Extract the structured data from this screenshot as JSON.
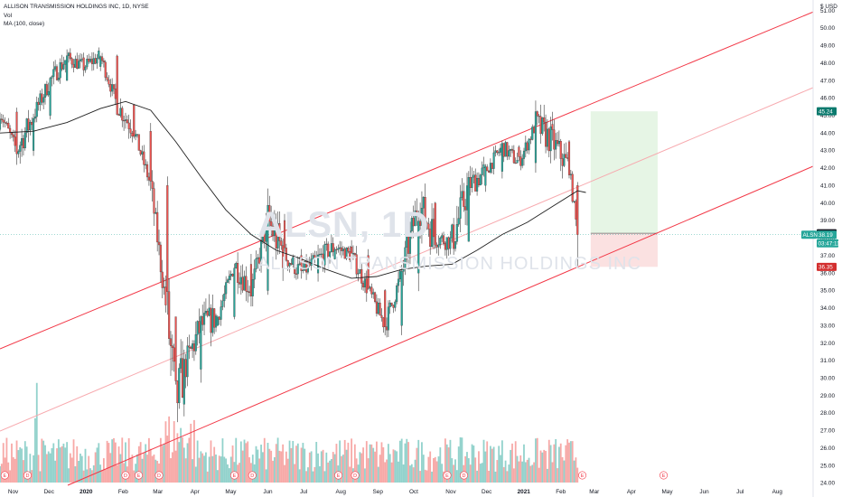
{
  "legend": {
    "symbol_line": "ALLISON TRANSMISSION HOLDINGS INC, 1D, NYSE",
    "vol_label": "Vol",
    "ma_label": "MA (100, close)"
  },
  "watermark": {
    "ticker": "ALSN, 1D",
    "company": "ALLISON TRANSMISSION HOLDINGS INC"
  },
  "currency_label": "$ USD",
  "price_tags": {
    "target": "45.24",
    "entry": "38.27",
    "last_symbol": "ALSN",
    "last": "38.19",
    "countdown": "03:47:11",
    "stop": "36.35"
  },
  "colors": {
    "up": "#26a69a",
    "down": "#ef5350",
    "channel": "#f23645",
    "midline": "#f7a9ae",
    "ma": "#1f1f1f",
    "profit_zone": "#e6f5e5",
    "loss_zone": "#fbe1e1",
    "target_tag": "#0b7a6e",
    "stop_tag": "#d32f2f"
  },
  "chart_data": {
    "type": "candlestick",
    "title": "ALLISON TRANSMISSION HOLDINGS INC, 1D, NYSE",
    "ylim": [
      23.2,
      51.6
    ],
    "y_ticks": [
      "24.00",
      "25.00",
      "26.00",
      "27.00",
      "28.00",
      "29.00",
      "30.00",
      "31.00",
      "32.00",
      "33.00",
      "34.00",
      "35.00",
      "36.00",
      "37.00",
      "38.00",
      "39.00",
      "40.00",
      "41.00",
      "42.00",
      "43.00",
      "44.00",
      "45.00",
      "46.00",
      "47.00",
      "48.00",
      "49.00",
      "50.00",
      "51.00"
    ],
    "x_ticks": [
      "Nov",
      "Dec",
      "2020",
      "Feb",
      "Mar",
      "Apr",
      "May",
      "Jun",
      "Jul",
      "Aug",
      "Sep",
      "Oct",
      "Nov",
      "Dec",
      "2021",
      "Feb",
      "Mar",
      "Apr",
      "May",
      "Jun",
      "Jul",
      "Aug"
    ],
    "x_range": [
      "2019-10-21",
      "2021-08-31"
    ],
    "ohlc_approx": [
      [
        "2019-10-21",
        44.2,
        45.6,
        43.8,
        45.2
      ],
      [
        "2019-11-04",
        45.2,
        46.0,
        41.5,
        43.0
      ],
      [
        "2019-11-18",
        43.0,
        45.5,
        42.5,
        45.0
      ],
      [
        "2019-12-02",
        45.0,
        47.5,
        44.5,
        47.0
      ],
      [
        "2019-12-16",
        47.0,
        48.6,
        46.5,
        48.3
      ],
      [
        "2019-12-30",
        48.3,
        48.8,
        47.2,
        47.8
      ],
      [
        "2020-01-13",
        47.8,
        48.7,
        47.0,
        48.4
      ],
      [
        "2020-01-27",
        48.4,
        48.5,
        45.0,
        45.6
      ],
      [
        "2020-02-10",
        45.6,
        46.2,
        43.5,
        44.1
      ],
      [
        "2020-02-24",
        44.1,
        44.5,
        40.0,
        41.0
      ],
      [
        "2020-03-09",
        41.0,
        41.5,
        30.0,
        33.5
      ],
      [
        "2020-03-16",
        33.5,
        35.0,
        25.5,
        28.5
      ],
      [
        "2020-03-23",
        28.5,
        31.5,
        26.0,
        30.5
      ],
      [
        "2020-04-06",
        30.5,
        34.5,
        29.5,
        33.0
      ],
      [
        "2020-04-20",
        33.0,
        34.5,
        31.5,
        33.5
      ],
      [
        "2020-05-04",
        33.5,
        37.0,
        32.5,
        36.5
      ],
      [
        "2020-05-18",
        36.5,
        37.5,
        33.5,
        35.0
      ],
      [
        "2020-06-01",
        35.0,
        41.6,
        34.5,
        39.0
      ],
      [
        "2020-06-15",
        39.0,
        39.5,
        36.0,
        37.0
      ],
      [
        "2020-06-29",
        37.0,
        38.0,
        35.0,
        36.0
      ],
      [
        "2020-07-13",
        36.0,
        37.5,
        34.0,
        36.8
      ],
      [
        "2020-07-27",
        36.8,
        38.0,
        35.5,
        37.5
      ],
      [
        "2020-08-10",
        37.5,
        39.5,
        36.5,
        37.0
      ],
      [
        "2020-08-24",
        37.0,
        37.5,
        34.5,
        35.0
      ],
      [
        "2020-09-07",
        35.0,
        35.5,
        32.0,
        33.0
      ],
      [
        "2020-09-21",
        33.0,
        37.0,
        31.4,
        36.0
      ],
      [
        "2020-10-05",
        36.0,
        42.2,
        35.5,
        40.0
      ],
      [
        "2020-10-19",
        40.0,
        40.8,
        37.5,
        38.0
      ],
      [
        "2020-11-02",
        38.0,
        40.0,
        33.5,
        37.8
      ],
      [
        "2020-11-16",
        37.8,
        41.5,
        37.5,
        41.0
      ],
      [
        "2020-11-30",
        41.0,
        42.5,
        40.5,
        41.8
      ],
      [
        "2020-12-14",
        41.8,
        43.8,
        41.0,
        43.2
      ],
      [
        "2020-12-28",
        43.2,
        44.0,
        41.5,
        42.3
      ],
      [
        "2021-01-11",
        42.3,
        45.7,
        40.5,
        44.5
      ],
      [
        "2021-01-25",
        44.5,
        45.2,
        40.2,
        43.5
      ],
      [
        "2021-02-08",
        43.5,
        44.0,
        41.5,
        42.0
      ],
      [
        "2021-02-15",
        41.0,
        41.2,
        36.4,
        38.19
      ]
    ],
    "series": [
      {
        "name": "Vol",
        "type": "volume"
      },
      {
        "name": "MA (100, close)",
        "type": "line",
        "points": [
          [
            "2019-10-21",
            44.0
          ],
          [
            "2019-11-18",
            44.1
          ],
          [
            "2019-12-16",
            44.6
          ],
          [
            "2020-01-13",
            45.4
          ],
          [
            "2020-02-03",
            45.8
          ],
          [
            "2020-02-24",
            45.3
          ],
          [
            "2020-03-16",
            43.5
          ],
          [
            "2020-04-06",
            41.5
          ],
          [
            "2020-04-27",
            39.6
          ],
          [
            "2020-05-18",
            38.2
          ],
          [
            "2020-06-08",
            37.3
          ],
          [
            "2020-06-29",
            36.8
          ],
          [
            "2020-07-20",
            36.2
          ],
          [
            "2020-08-10",
            35.7
          ],
          [
            "2020-08-31",
            35.8
          ],
          [
            "2020-09-21",
            36.2
          ],
          [
            "2020-10-12",
            36.4
          ],
          [
            "2020-11-02",
            36.5
          ],
          [
            "2020-11-23",
            37.3
          ],
          [
            "2020-12-14",
            38.2
          ],
          [
            "2021-01-04",
            38.9
          ],
          [
            "2021-01-25",
            39.8
          ],
          [
            "2021-02-15",
            40.7
          ],
          [
            "2021-02-22",
            40.6
          ]
        ]
      }
    ],
    "annotations": {
      "ascending_channel": true,
      "long_position": {
        "entry": 38.27,
        "target": 45.24,
        "stop": 36.35
      }
    },
    "grid": false,
    "last_price": 38.19
  }
}
